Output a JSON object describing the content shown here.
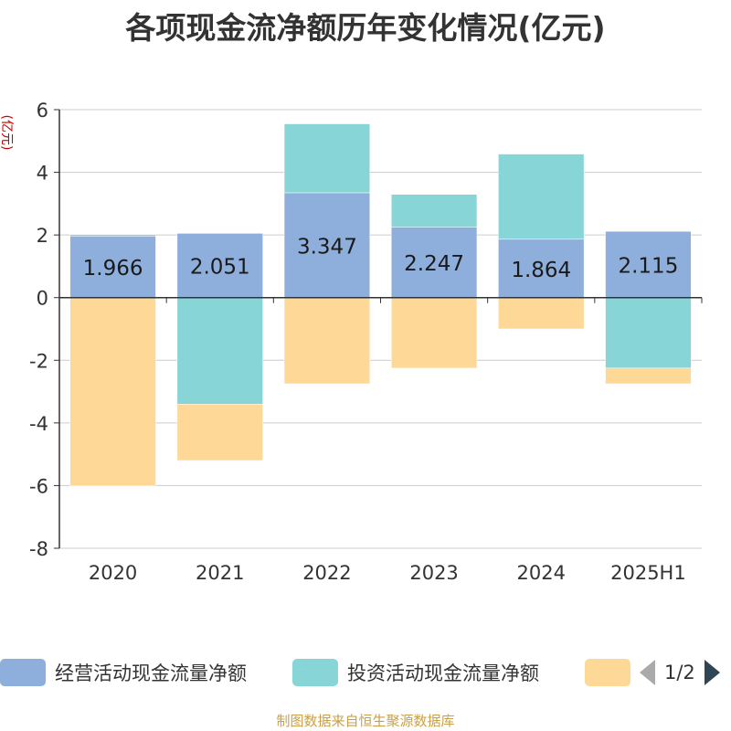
{
  "chart_data": {
    "type": "bar",
    "stacked": true,
    "title": "各项现金流净额历年变化情况(亿元)",
    "ylabel": "(亿元)",
    "categories": [
      "2020",
      "2021",
      "2022",
      "2023",
      "2024",
      "2025H1"
    ],
    "ylim": [
      -8,
      6
    ],
    "yticks": [
      6,
      4,
      2,
      0,
      -2,
      -4,
      -6,
      -8
    ],
    "grid": true,
    "series": [
      {
        "name": "经营活动现金流量净额",
        "color": "#8eaedb",
        "values": [
          1.966,
          2.051,
          3.347,
          2.247,
          1.864,
          2.115
        ],
        "labels": [
          "1.966",
          "2.051",
          "3.347",
          "2.247",
          "1.864",
          "2.115"
        ]
      },
      {
        "name": "投资活动现金流量净额",
        "color": "#88d5d8",
        "values": [
          0.05,
          -3.4,
          2.2,
          1.05,
          2.72,
          -2.25
        ]
      },
      {
        "name": "",
        "color": "#fed897",
        "values": [
          -6.0,
          -1.8,
          -2.75,
          -2.25,
          -1.0,
          -0.5
        ]
      }
    ],
    "legend_position": "bottom",
    "legend_page": "1/2"
  },
  "source_note": "制图数据来自恒生聚源数据库"
}
